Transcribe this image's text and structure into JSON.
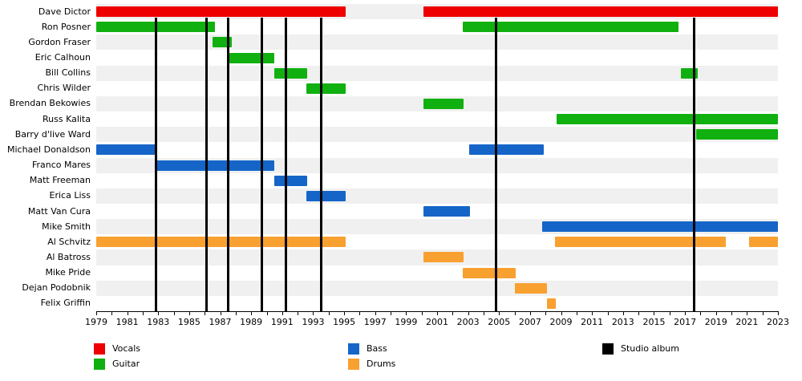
{
  "chart_data": {
    "type": "gantt-timeline",
    "x_axis": {
      "min": 1979,
      "max": 2023,
      "tick_every_years": 1,
      "labels": [
        1979,
        1981,
        1983,
        1985,
        1987,
        1989,
        1991,
        1993,
        1995,
        1997,
        1999,
        2001,
        2003,
        2005,
        2007,
        2009,
        2011,
        2013,
        2015,
        2017,
        2019,
        2021,
        2023
      ]
    },
    "roles": {
      "vocals": "#ee0000",
      "guitar": "#10b010",
      "bass": "#1565c8",
      "drums": "#f8a030",
      "studio_album": "#000000"
    },
    "members": [
      {
        "name": "Dave Dictor",
        "role": "vocals",
        "segments": [
          [
            1979,
            1995.1
          ],
          [
            2000.1,
            2023
          ]
        ]
      },
      {
        "name": "Ron Posner",
        "role": "guitar",
        "segments": [
          [
            1979,
            1986.65
          ],
          [
            2002.65,
            2016.6
          ]
        ]
      },
      {
        "name": "Gordon Fraser",
        "role": "guitar",
        "segments": [
          [
            1986.5,
            1987.75
          ]
        ]
      },
      {
        "name": "Eric Calhoun",
        "role": "guitar",
        "segments": [
          [
            1987.6,
            1990.5
          ]
        ]
      },
      {
        "name": "Bill Collins",
        "role": "guitar",
        "segments": [
          [
            1990.5,
            1992.6
          ],
          [
            2016.75,
            2017.8
          ]
        ]
      },
      {
        "name": "Chris Wilder",
        "role": "guitar",
        "segments": [
          [
            1992.55,
            1995.1
          ]
        ]
      },
      {
        "name": "Brendan Bekowies",
        "role": "guitar",
        "segments": [
          [
            2000.1,
            2002.7
          ]
        ]
      },
      {
        "name": "Russ Kalita",
        "role": "guitar",
        "segments": [
          [
            2008.7,
            2023
          ]
        ]
      },
      {
        "name": "Barry d'live Ward",
        "role": "guitar",
        "segments": [
          [
            2017.7,
            2023
          ]
        ]
      },
      {
        "name": "Michael Donaldson",
        "role": "bass",
        "segments": [
          [
            1979,
            1982.85
          ],
          [
            2003.05,
            2007.9
          ]
        ]
      },
      {
        "name": "Franco Mares",
        "role": "bass",
        "segments": [
          [
            1982.85,
            1990.5
          ]
        ]
      },
      {
        "name": "Matt Freeman",
        "role": "bass",
        "segments": [
          [
            1990.5,
            1992.6
          ]
        ]
      },
      {
        "name": "Erica Liss",
        "role": "bass",
        "segments": [
          [
            1992.55,
            1995.1
          ]
        ]
      },
      {
        "name": "Matt Van Cura",
        "role": "bass",
        "segments": [
          [
            2000.1,
            2003.1
          ]
        ]
      },
      {
        "name": "Mike Smith",
        "role": "bass",
        "segments": [
          [
            2007.8,
            2023
          ]
        ]
      },
      {
        "name": "Al Schvitz",
        "role": "drums",
        "segments": [
          [
            1979,
            1995.1
          ],
          [
            2008.6,
            2019.65
          ],
          [
            2021.15,
            2023
          ]
        ]
      },
      {
        "name": "Al Batross",
        "role": "drums",
        "segments": [
          [
            2000.1,
            2002.7
          ]
        ]
      },
      {
        "name": "Mike Pride",
        "role": "drums",
        "segments": [
          [
            2002.65,
            2006.05
          ]
        ]
      },
      {
        "name": "Dejan Podobnik",
        "role": "drums",
        "segments": [
          [
            2006.0,
            2008.1
          ]
        ]
      },
      {
        "name": "Felix Griffin",
        "role": "drums",
        "segments": [
          [
            2008.1,
            2008.65
          ]
        ]
      }
    ],
    "studio_albums": [
      1982.85,
      1986.1,
      1987.5,
      1989.7,
      1991.25,
      1993.5,
      2004.8,
      2017.6
    ],
    "legend": {
      "columns": [
        [
          {
            "label": "Vocals",
            "role": "vocals"
          },
          {
            "label": "Guitar",
            "role": "guitar"
          }
        ],
        [
          {
            "label": "Bass",
            "role": "bass"
          },
          {
            "label": "Drums",
            "role": "drums"
          }
        ],
        [
          {
            "label": "Studio album",
            "role": "studio_album"
          }
        ]
      ]
    },
    "layout_hints": {
      "grid": "alternating row stripes",
      "legend_position": "bottom",
      "album_lines_on_top_of_bars": true
    }
  }
}
